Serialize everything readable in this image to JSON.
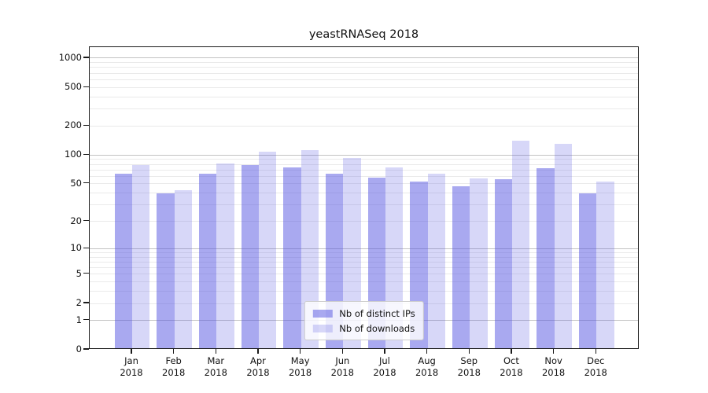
{
  "title": "yeastRNASeq 2018",
  "chart_data": {
    "type": "bar",
    "title": "yeastRNASeq 2018",
    "x": {
      "months": [
        "Jan",
        "Feb",
        "Mar",
        "Apr",
        "May",
        "Jun",
        "Jul",
        "Aug",
        "Sep",
        "Oct",
        "Nov",
        "Dec"
      ],
      "year": "2018"
    },
    "series": [
      {
        "name": "Nb of distinct IPs",
        "key": "distinct-ips",
        "color": "rgba(80,80,225,0.49)",
        "values": [
          61,
          38,
          61,
          75,
          71,
          61,
          56,
          51,
          45,
          54,
          70,
          38
        ]
      },
      {
        "name": "Nb of downloads",
        "key": "downloads",
        "color": "rgba(80,80,225,0.23)",
        "values": [
          75,
          41,
          78,
          104,
          108,
          90,
          72,
          61,
          55,
          135,
          126,
          51
        ]
      }
    ],
    "yscale": "log1p",
    "ylim": [
      0,
      1300
    ],
    "yticks": [
      0,
      1,
      2,
      5,
      10,
      20,
      50,
      100,
      200,
      500,
      1000
    ],
    "grid_major": [
      1,
      10,
      100,
      1000
    ],
    "grid_minor": [
      2,
      3,
      4,
      5,
      6,
      7,
      8,
      9,
      20,
      30,
      40,
      50,
      60,
      70,
      80,
      90,
      200,
      300,
      400,
      500,
      600,
      700,
      800,
      900
    ],
    "legend_position": "lower center"
  },
  "colors": {
    "bar_distinct_ips": "rgba(80,80,225,0.49)",
    "bar_downloads": "rgba(80,80,225,0.23)",
    "grid_major": "#c2c2c2",
    "grid_minor": "#eaeaea",
    "spine": "#1a1a1a",
    "text": "#111111",
    "legend_bg": "rgba(255,255,255,0.8)",
    "legend_border": "#cccccc"
  }
}
